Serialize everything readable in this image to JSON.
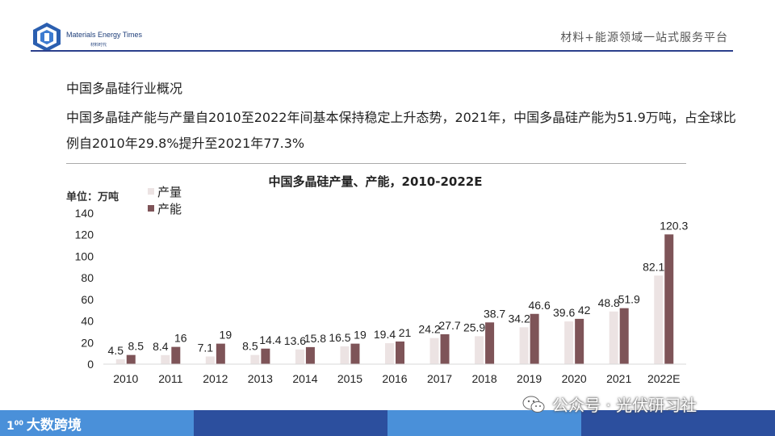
{
  "header": {
    "logo_name": "Materials Energy Times",
    "logo_sub": "材料时代",
    "platform_text": "材料+能源领域一站式服务平台"
  },
  "section_title": "中国多晶硅行业概况",
  "body_text": "中国多晶硅产能与产量自2010至2022年间基本保持稳定上升态势，2021年，中国多晶硅产能为51.9万吨，占全球比例自2010年29.8%提升至2021年77.3%",
  "colors": {
    "production": "#ece3e3",
    "capacity": "#7e5458",
    "header_line": "#2b3f8c",
    "footer_blue": "#4a90d9",
    "footer_dark": "#2c4f9e"
  },
  "footer": {
    "brand": "大数跨境",
    "brand_icon": "100-logo-icon",
    "wechat_text": "公众号 · 光伏研习社",
    "wechat_icon": "wechat-icon"
  },
  "chart_data": {
    "type": "bar",
    "title": "中国多晶硅产量、产能，2010-2022E",
    "unit_label": "单位：万吨",
    "categories": [
      "2010",
      "2011",
      "2012",
      "2013",
      "2014",
      "2015",
      "2016",
      "2017",
      "2018",
      "2019",
      "2020",
      "2021",
      "2022E"
    ],
    "series": [
      {
        "name": "产量",
        "values": [
          4.5,
          8.4,
          7.1,
          8.5,
          13.6,
          16.5,
          19.4,
          24.2,
          25.9,
          34.2,
          39.6,
          48.8,
          82.1
        ]
      },
      {
        "name": "产能",
        "values": [
          8.5,
          16,
          19,
          14.4,
          15.8,
          19,
          21,
          27.7,
          38.7,
          46.6,
          42,
          51.9,
          120.3
        ]
      }
    ],
    "y_ticks": [
      0,
      20,
      40,
      60,
      80,
      100,
      120,
      140
    ],
    "ylim": [
      0,
      140
    ],
    "legend_position": "top-left",
    "grid": false
  }
}
